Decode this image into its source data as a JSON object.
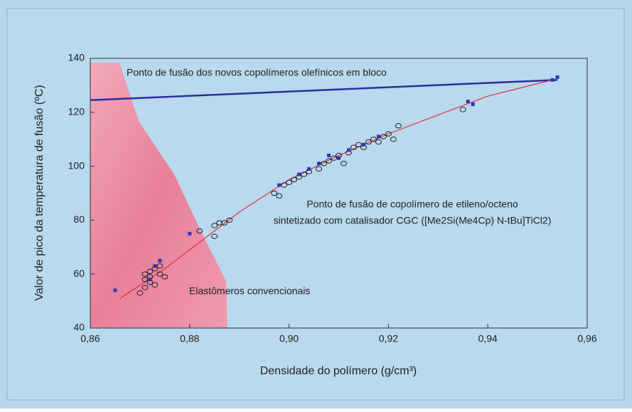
{
  "chart_data": {
    "type": "scatter",
    "x_label": "Densidade do polímero (g/cm³)",
    "y_label": "Valor de pico da temperatura de fusão (ºC)",
    "annotations": [
      "Ponto de fusão dos novos copolímeros olefínicos em bloco",
      "Ponto de fusão de copolímero de etileno/octeno",
      "sintetizado com catalisador CGC ([Me2Si(Me4Cp) N-tBu]TiCl2)",
      "Elastômeros convencionais"
    ],
    "xlim": [
      0.86,
      0.96
    ],
    "xticks": [
      {
        "value": 0.86,
        "label": "0,86"
      },
      {
        "value": 0.88,
        "label": "0,88"
      },
      {
        "value": 0.9,
        "label": "0,90"
      },
      {
        "value": 0.92,
        "label": "0,92"
      },
      {
        "value": 0.94,
        "label": "0,94"
      },
      {
        "value": 0.96,
        "label": "0,96"
      }
    ],
    "ylim": [
      40,
      140
    ],
    "yticks": [
      40,
      60,
      80,
      100,
      120,
      140
    ],
    "series": [
      {
        "kind": "line",
        "color": "#2b2f9e",
        "x": [
          0.86,
          0.954
        ],
        "values": [
          124.5,
          132
        ]
      },
      {
        "kind": "line",
        "color": "#e0303a",
        "x": [
          0.866,
          0.875,
          0.89,
          0.9,
          0.91,
          0.92,
          0.93,
          0.94,
          0.953
        ],
        "values": [
          51,
          62,
          83,
          95,
          104,
          112,
          119,
          126,
          132
        ]
      },
      {
        "kind": "circle",
        "color": "#222222",
        "x": [
          0.87,
          0.871,
          0.871,
          0.872,
          0.872,
          0.872,
          0.873,
          0.873,
          0.874,
          0.874,
          0.875,
          0.871,
          0.882,
          0.885,
          0.885,
          0.886,
          0.887,
          0.888,
          0.897,
          0.898,
          0.899,
          0.9,
          0.901,
          0.902,
          0.903,
          0.904,
          0.906,
          0.907,
          0.908,
          0.909,
          0.91,
          0.911,
          0.912,
          0.913,
          0.914,
          0.915,
          0.916,
          0.917,
          0.918,
          0.919,
          0.92,
          0.921,
          0.922,
          0.935
        ],
        "values": [
          53,
          55,
          58,
          57,
          61,
          59,
          56,
          62,
          60,
          63,
          59,
          60,
          76,
          78,
          74,
          79,
          79,
          80,
          90,
          89,
          93,
          94,
          95,
          96,
          97,
          98,
          99,
          101,
          102,
          103,
          104,
          101,
          105,
          107,
          108,
          107,
          109,
          110,
          109,
          111,
          112,
          110,
          115,
          121
        ]
      },
      {
        "kind": "square",
        "color": "#3535b5",
        "x": [
          0.865,
          0.872,
          0.873,
          0.874,
          0.88,
          0.898,
          0.902,
          0.904,
          0.906,
          0.908,
          0.91,
          0.912,
          0.915,
          0.918,
          0.936,
          0.937,
          0.953,
          0.954
        ],
        "values": [
          54,
          58,
          63,
          65,
          75,
          93,
          97,
          99,
          101,
          104,
          103,
          106,
          108,
          111,
          124,
          123,
          132,
          133
        ]
      }
    ]
  }
}
